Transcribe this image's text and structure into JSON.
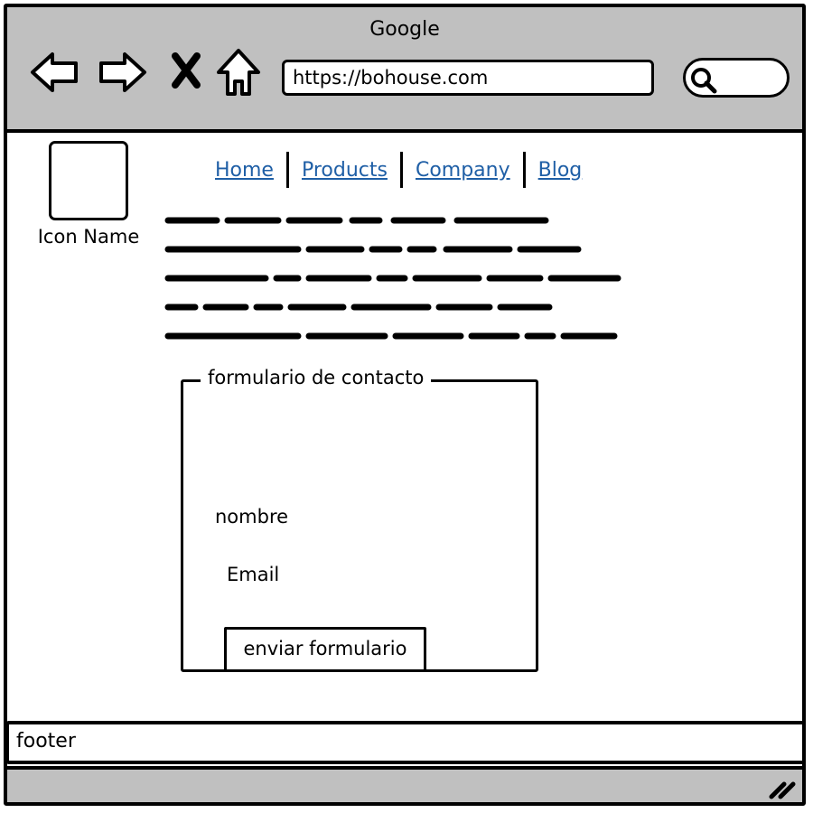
{
  "window": {
    "title": "Google"
  },
  "toolbar": {
    "back_icon": "back-arrow-icon",
    "forward_icon": "forward-arrow-icon",
    "stop_icon": "close-icon",
    "home_icon": "home-icon",
    "url": "https://bohouse.com",
    "search_icon": "search-icon"
  },
  "logo": {
    "name": "Icon Name"
  },
  "nav": {
    "items": [
      {
        "label": "Home"
      },
      {
        "label": "Products"
      },
      {
        "label": "Company"
      },
      {
        "label": "Blog"
      }
    ]
  },
  "form": {
    "legend": "formulario de contacto",
    "name_label": "nombre",
    "email_label": "Email",
    "submit_label": "enviar formulario"
  },
  "footer": {
    "text": "footer"
  },
  "colors": {
    "chrome": "#c0c0c0",
    "link": "#1f5fa6",
    "border": "#000000"
  }
}
